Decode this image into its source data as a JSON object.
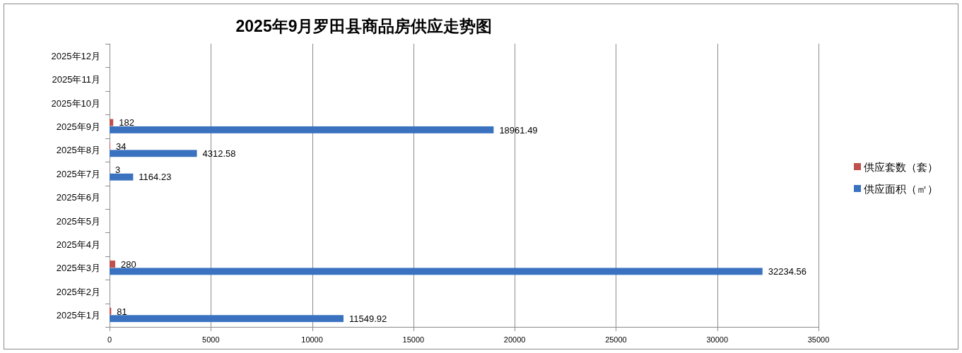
{
  "chart_data": {
    "type": "bar",
    "orientation": "horizontal",
    "title": "2025年9月罗田县商品房供应走势图",
    "categories": [
      "2025年12月",
      "2025年11月",
      "2025年10月",
      "2025年9月",
      "2025年8月",
      "2025年7月",
      "2025年6月",
      "2025年5月",
      "2025年4月",
      "2025年3月",
      "2025年2月",
      "2025年1月"
    ],
    "series": [
      {
        "name": "供应套数（套）",
        "color": "#c0504d",
        "values": [
          null,
          null,
          null,
          182,
          34,
          3,
          null,
          null,
          null,
          280,
          null,
          81
        ]
      },
      {
        "name": "供应面积（㎡）",
        "color": "#3a72c0",
        "values": [
          null,
          null,
          null,
          18961.49,
          4312.58,
          1164.23,
          null,
          null,
          null,
          32234.56,
          null,
          11549.92
        ]
      }
    ],
    "xlim": [
      0,
      35000
    ],
    "xticks": [
      0,
      5000,
      10000,
      15000,
      20000,
      25000,
      30000,
      35000
    ],
    "grid": "x",
    "legend": "right",
    "data_labels": true
  }
}
